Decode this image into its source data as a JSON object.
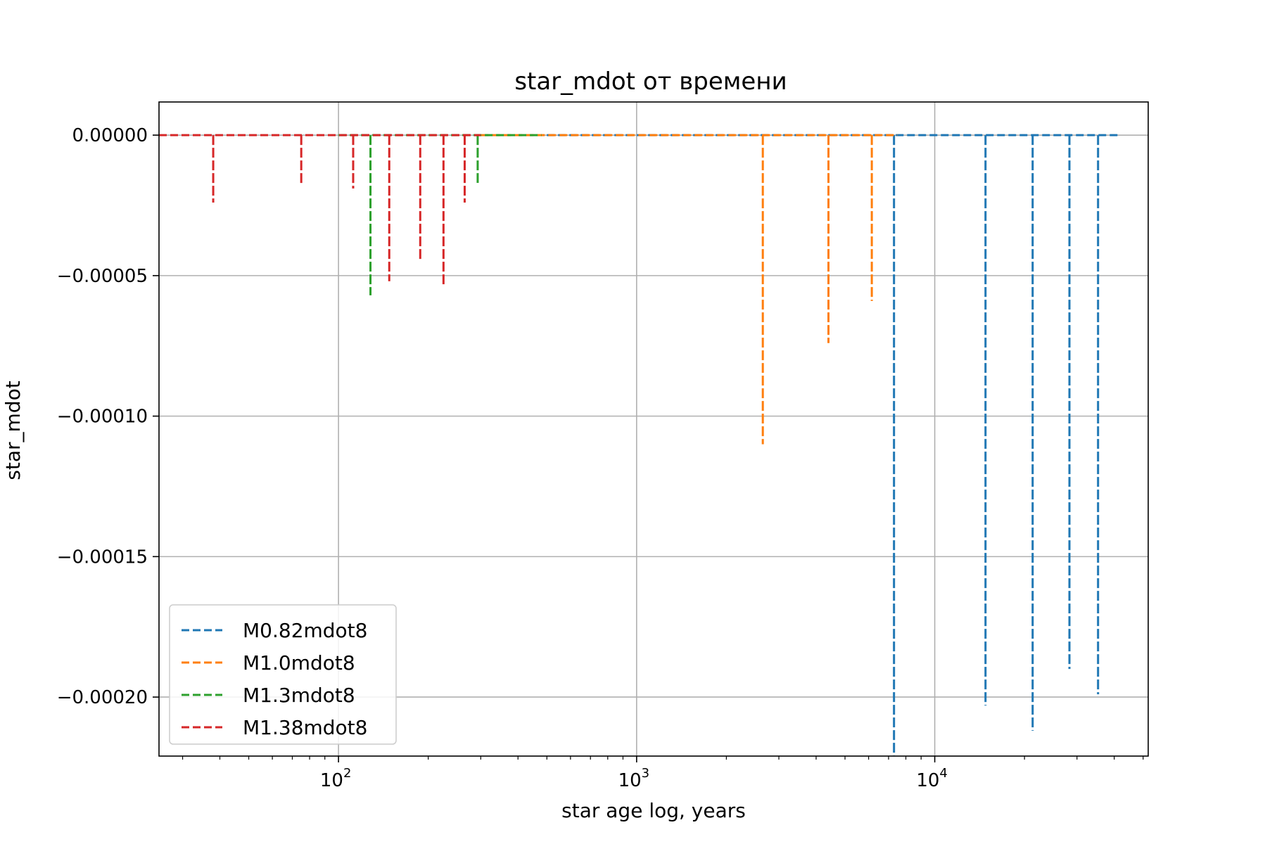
{
  "chart_data": {
    "type": "line",
    "title": "star_mdot от времени",
    "xlabel": "star age log, years",
    "ylabel": "star_mdot",
    "xscale": "log",
    "xlim": [
      25,
      52000
    ],
    "ylim": [
      -0.000221,
      1.18e-05
    ],
    "grid": true,
    "legend_position": "lower-left",
    "x_ticks": [
      {
        "value": 100,
        "base": "10",
        "exp": "2"
      },
      {
        "value": 1000,
        "base": "10",
        "exp": "3"
      },
      {
        "value": 10000,
        "base": "10",
        "exp": "4"
      }
    ],
    "y_ticks": [
      {
        "value": 0,
        "label": "0.00000"
      },
      {
        "value": -5e-05,
        "label": "−0.00005"
      },
      {
        "value": -0.0001,
        "label": "−0.00010"
      },
      {
        "value": -0.00015,
        "label": "−0.00015"
      },
      {
        "value": -0.0002,
        "label": "−0.00020"
      }
    ],
    "series": [
      {
        "name": "M0.82mdot8",
        "color": "#1f77b4",
        "x_range": [
          500,
          42000
        ],
        "spikes": [
          {
            "x": 7300,
            "y": -0.000221
          },
          {
            "x": 14800,
            "y": -0.000203
          },
          {
            "x": 21300,
            "y": -0.000212
          },
          {
            "x": 28300,
            "y": -0.00019
          },
          {
            "x": 35300,
            "y": -0.000199
          }
        ]
      },
      {
        "name": "M1.0mdot8",
        "color": "#ff7f0e",
        "x_range": [
          300,
          7500
        ],
        "spikes": [
          {
            "x": 2650,
            "y": -0.00011
          },
          {
            "x": 4400,
            "y": -7.4e-05
          },
          {
            "x": 6150,
            "y": -5.9e-05
          }
        ]
      },
      {
        "name": "M1.3mdot8",
        "color": "#2ca02c",
        "x_range": [
          100,
          480
        ],
        "spikes": [
          {
            "x": 128,
            "y": -5.7e-05
          },
          {
            "x": 293,
            "y": -1.7e-05
          }
        ]
      },
      {
        "name": "M1.38mdot8",
        "color": "#d62728",
        "x_range": [
          25,
          300
        ],
        "spikes": [
          {
            "x": 38,
            "y": -2.4e-05
          },
          {
            "x": 75,
            "y": -1.8e-05
          },
          {
            "x": 112,
            "y": -1.9e-05
          },
          {
            "x": 148,
            "y": -5.2e-05
          },
          {
            "x": 188,
            "y": -4.5e-05
          },
          {
            "x": 225,
            "y": -5.4e-05
          },
          {
            "x": 265,
            "y": -2.4e-05
          }
        ]
      }
    ]
  }
}
